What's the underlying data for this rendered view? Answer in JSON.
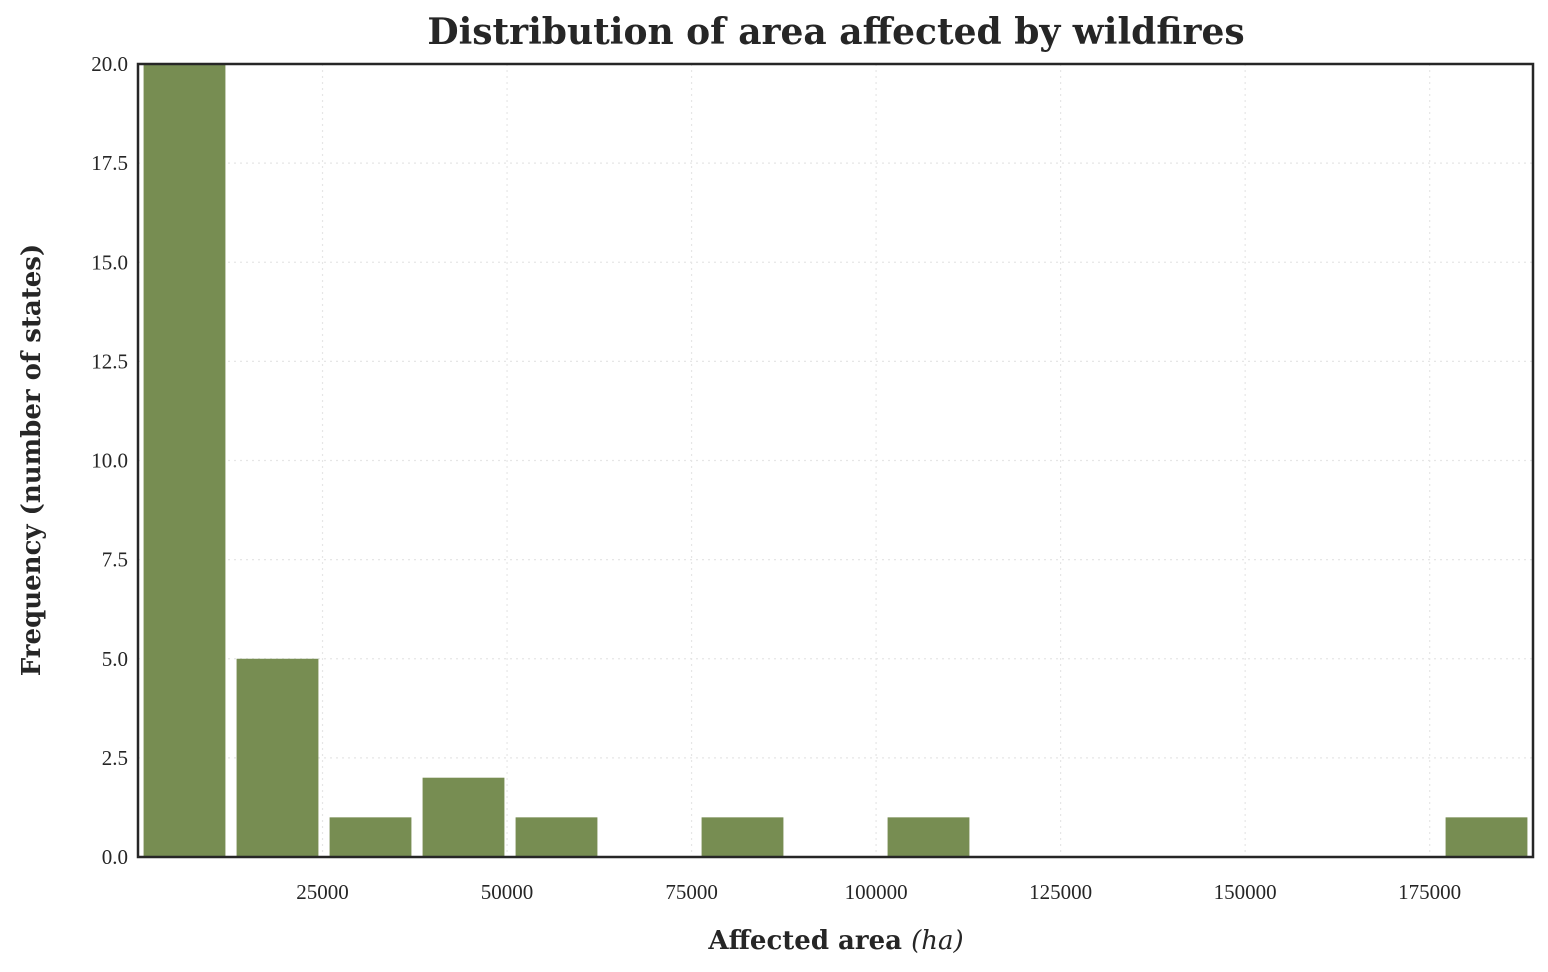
{
  "chart_data": {
    "type": "bar",
    "title": "Distribution of area affected by wildfires",
    "xlabel": "Affected area",
    "xlabel_unit": "(ha)",
    "ylabel": "Frequency (number of states)",
    "bar_color": "#778d52",
    "xlim": [
      0,
      189000
    ],
    "ylim": [
      0,
      20
    ],
    "grid": true,
    "x_ticks": [
      25000,
      50000,
      75000,
      100000,
      125000,
      150000,
      175000
    ],
    "y_ticks": [
      "0.0",
      "2.5",
      "5.0",
      "7.5",
      "10.0",
      "12.5",
      "15.0",
      "17.5",
      "20.0"
    ],
    "bins": [
      {
        "start": 0,
        "end": 12600,
        "count": 20
      },
      {
        "start": 12600,
        "end": 25200,
        "count": 5
      },
      {
        "start": 25200,
        "end": 37800,
        "count": 1
      },
      {
        "start": 37800,
        "end": 50400,
        "count": 2
      },
      {
        "start": 50400,
        "end": 63000,
        "count": 1
      },
      {
        "start": 63000,
        "end": 75600,
        "count": 0
      },
      {
        "start": 75600,
        "end": 88200,
        "count": 1
      },
      {
        "start": 88200,
        "end": 100800,
        "count": 0
      },
      {
        "start": 100800,
        "end": 113400,
        "count": 1
      },
      {
        "start": 113400,
        "end": 126000,
        "count": 0
      },
      {
        "start": 126000,
        "end": 138600,
        "count": 0
      },
      {
        "start": 138600,
        "end": 151200,
        "count": 0
      },
      {
        "start": 151200,
        "end": 163800,
        "count": 0
      },
      {
        "start": 163800,
        "end": 176400,
        "count": 0
      },
      {
        "start": 176400,
        "end": 189000,
        "count": 1
      }
    ]
  }
}
